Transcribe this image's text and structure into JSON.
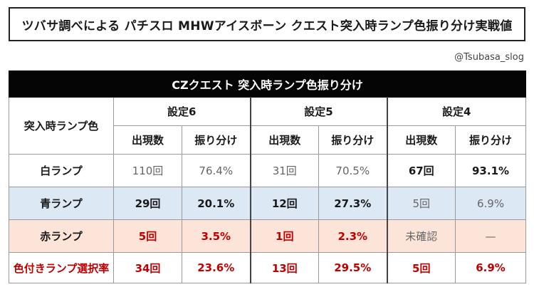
{
  "header": {
    "title": "ツバサ調べによる パチスロ MHWアイスボーン クエスト突入時ランプ色振り分け実戦値",
    "credit": "@Tsubasa_slog"
  },
  "table": {
    "banner": "CZクエスト 突入時ランプ色振り分け",
    "row_header_label": "突入時ランプ色",
    "settings": [
      "設定6",
      "設定5",
      "設定4"
    ],
    "sub_headers": [
      "出現数",
      "振り分け"
    ],
    "rows": [
      {
        "label": "白ランプ",
        "cells": [
          "110回",
          "76.4%",
          "31回",
          "70.5%",
          "67回",
          "93.1%"
        ]
      },
      {
        "label": "青ランプ",
        "cells": [
          "29回",
          "20.1%",
          "12回",
          "27.3%",
          "5回",
          "6.9%"
        ]
      },
      {
        "label": "赤ランプ",
        "cells": [
          "5回",
          "3.5%",
          "1回",
          "2.3%",
          "未確認",
          "—"
        ]
      },
      {
        "label": "色付きランプ選択率",
        "cells": [
          "34回",
          "23.6%",
          "13回",
          "29.5%",
          "5回",
          "6.9%"
        ]
      }
    ]
  },
  "colors": {
    "banner_bg": "#050505",
    "blue_row_bg": "#dde8f5",
    "red_row_bg": "#fce4d9",
    "accent_red": "#c00000"
  }
}
